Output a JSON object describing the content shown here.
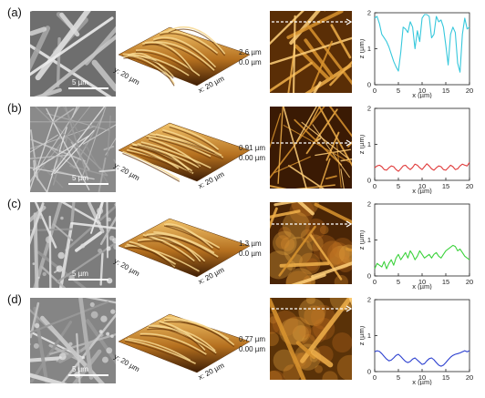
{
  "figure": {
    "rows": [
      {
        "label": "(a)",
        "sem_scale": "5 µm",
        "afm_z_max": "2.6 µm",
        "afm_z_min": "0.0 µm",
        "afm_y_label": "y: 20 µm",
        "afm_x_label": "x: 20 µm",
        "tone": "fibers",
        "line_color": "#37c8dc"
      },
      {
        "label": "(b)",
        "sem_scale": "5 µm",
        "afm_z_max": "0.91 µm",
        "afm_z_min": "0.00 µm",
        "afm_y_label": "y: 20 µm",
        "afm_x_label": "x: 20 µm",
        "tone": "fine",
        "line_color": "#e03a3a"
      },
      {
        "label": "(c)",
        "sem_scale": "5 µm",
        "afm_z_max": "1.3 µm",
        "afm_z_min": "0.0 µm",
        "afm_y_label": "y: 20 µm",
        "afm_x_label": "x: 20 µm",
        "tone": "mixed",
        "line_color": "#3cd23c"
      },
      {
        "label": "(d)",
        "sem_scale": "5 µm",
        "afm_z_max": "0.77 µm",
        "afm_z_min": "0.00 µm",
        "afm_y_label": "y: 20 µm",
        "afm_x_label": "x: 20 µm",
        "tone": "smooth",
        "line_color": "#2b3fcf"
      }
    ]
  },
  "chart_data": [
    {
      "type": "line",
      "xlabel": "x (µm)",
      "ylabel": "z (µm)",
      "xlim": [
        0,
        20
      ],
      "ylim": [
        0,
        2
      ],
      "xticks": [
        "0",
        "5",
        "10",
        "15",
        "20"
      ],
      "yticks": [
        "0",
        "1",
        "2"
      ],
      "series": [
        {
          "color": "#37c8dc",
          "x": [
            0,
            0.5,
            1,
            1.5,
            2,
            2.5,
            3,
            3.5,
            4,
            4.5,
            5,
            5.5,
            6,
            6.5,
            7,
            7.5,
            8,
            8.5,
            9,
            9.5,
            10,
            10.5,
            11,
            11.5,
            12,
            12.5,
            13,
            13.5,
            14,
            14.5,
            15,
            15.5,
            16,
            16.5,
            17,
            17.5,
            18,
            18.5,
            19,
            19.5,
            20
          ],
          "values": [
            1.85,
            1.9,
            1.7,
            1.4,
            1.3,
            1.2,
            1.05,
            0.85,
            0.65,
            0.5,
            0.38,
            0.9,
            1.6,
            1.55,
            1.45,
            1.75,
            1.6,
            1.0,
            1.5,
            1.2,
            1.85,
            1.95,
            1.95,
            1.9,
            1.3,
            1.4,
            1.9,
            1.75,
            1.8,
            1.6,
            1.1,
            0.55,
            1.4,
            1.6,
            1.45,
            0.6,
            0.35,
            1.4,
            1.85,
            1.55,
            1.6
          ]
        }
      ]
    },
    {
      "type": "line",
      "xlabel": "x (µm)",
      "ylabel": "z (µm)",
      "xlim": [
        0,
        20
      ],
      "ylim": [
        0,
        2
      ],
      "xticks": [
        "0",
        "5",
        "10",
        "15",
        "20"
      ],
      "yticks": [
        "0",
        "1",
        "2"
      ],
      "series": [
        {
          "color": "#e03a3a",
          "x": [
            0,
            0.5,
            1,
            1.5,
            2,
            2.5,
            3,
            3.5,
            4,
            4.5,
            5,
            5.5,
            6,
            6.5,
            7,
            7.5,
            8,
            8.5,
            9,
            9.5,
            10,
            10.5,
            11,
            11.5,
            12,
            12.5,
            13,
            13.5,
            14,
            14.5,
            15,
            15.5,
            16,
            16.5,
            17,
            17.5,
            18,
            18.5,
            19,
            19.5,
            20
          ],
          "values": [
            0.35,
            0.4,
            0.42,
            0.38,
            0.3,
            0.28,
            0.35,
            0.4,
            0.38,
            0.3,
            0.25,
            0.32,
            0.4,
            0.42,
            0.35,
            0.3,
            0.36,
            0.45,
            0.42,
            0.35,
            0.3,
            0.38,
            0.46,
            0.4,
            0.32,
            0.28,
            0.35,
            0.4,
            0.38,
            0.3,
            0.28,
            0.35,
            0.42,
            0.38,
            0.3,
            0.32,
            0.4,
            0.45,
            0.42,
            0.4,
            0.5
          ]
        }
      ]
    },
    {
      "type": "line",
      "xlabel": "x (µm)",
      "ylabel": "z (µm)",
      "xlim": [
        0,
        20
      ],
      "ylim": [
        0,
        2
      ],
      "xticks": [
        "0",
        "5",
        "10",
        "15",
        "20"
      ],
      "yticks": [
        "0",
        "1",
        "2"
      ],
      "series": [
        {
          "color": "#3cd23c",
          "x": [
            0,
            0.5,
            1,
            1.5,
            2,
            2.5,
            3,
            3.5,
            4,
            4.5,
            5,
            5.5,
            6,
            6.5,
            7,
            7.5,
            8,
            8.5,
            9,
            9.5,
            10,
            10.5,
            11,
            11.5,
            12,
            12.5,
            13,
            13.5,
            14,
            14.5,
            15,
            15.5,
            16,
            16.5,
            17,
            17.5,
            18,
            18.5,
            19,
            19.5,
            20
          ],
          "values": [
            0.2,
            0.35,
            0.3,
            0.25,
            0.4,
            0.2,
            0.35,
            0.45,
            0.3,
            0.5,
            0.6,
            0.45,
            0.55,
            0.65,
            0.5,
            0.7,
            0.6,
            0.45,
            0.55,
            0.7,
            0.6,
            0.5,
            0.55,
            0.6,
            0.5,
            0.6,
            0.65,
            0.55,
            0.5,
            0.6,
            0.7,
            0.75,
            0.8,
            0.85,
            0.82,
            0.7,
            0.75,
            0.65,
            0.55,
            0.5,
            0.45
          ]
        }
      ]
    },
    {
      "type": "line",
      "xlabel": "x (µm)",
      "ylabel": "z (µm)",
      "xlim": [
        0,
        20
      ],
      "ylim": [
        0,
        2
      ],
      "xticks": [
        "0",
        "5",
        "10",
        "15",
        "20"
      ],
      "yticks": [
        "0",
        "1",
        "2"
      ],
      "series": [
        {
          "color": "#2b3fcf",
          "x": [
            0,
            0.5,
            1,
            1.5,
            2,
            2.5,
            3,
            3.5,
            4,
            4.5,
            5,
            5.5,
            6,
            6.5,
            7,
            7.5,
            8,
            8.5,
            9,
            9.5,
            10,
            10.5,
            11,
            11.5,
            12,
            12.5,
            13,
            13.5,
            14,
            14.5,
            15,
            15.5,
            16,
            16.5,
            17,
            17.5,
            18,
            18.5,
            19,
            19.5,
            20
          ],
          "values": [
            0.55,
            0.58,
            0.56,
            0.5,
            0.42,
            0.35,
            0.3,
            0.32,
            0.38,
            0.45,
            0.48,
            0.42,
            0.35,
            0.28,
            0.25,
            0.28,
            0.35,
            0.38,
            0.32,
            0.26,
            0.2,
            0.22,
            0.3,
            0.36,
            0.38,
            0.33,
            0.25,
            0.18,
            0.15,
            0.18,
            0.25,
            0.33,
            0.4,
            0.45,
            0.48,
            0.5,
            0.52,
            0.55,
            0.58,
            0.55,
            0.58
          ]
        }
      ]
    }
  ]
}
